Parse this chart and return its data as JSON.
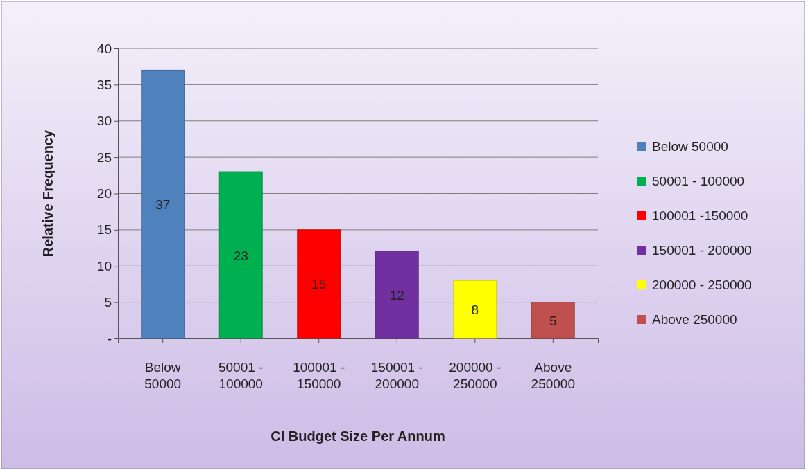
{
  "chart_data": {
    "type": "bar",
    "xlabel": "CI Budget Size Per Annum",
    "ylabel": "Relative Frequency",
    "categories": [
      "Below 50000",
      "50001 - 100000",
      "100001 - 150000",
      "150001 - 200000",
      "200000 - 250000",
      "Above 250000"
    ],
    "series": [
      {
        "name": "Below 50000",
        "color": "#4f81bd",
        "values": [
          37,
          null,
          null,
          null,
          null,
          null
        ]
      },
      {
        "name": "50001 - 100000",
        "color": "#00b050",
        "values": [
          null,
          23,
          null,
          null,
          null,
          null
        ]
      },
      {
        "name": "100001 -150000",
        "color": "#ff0000",
        "values": [
          null,
          null,
          15,
          null,
          null,
          null
        ]
      },
      {
        "name": "150001 - 200000",
        "color": "#7030a0",
        "values": [
          null,
          null,
          null,
          12,
          null,
          null
        ]
      },
      {
        "name": "200000 - 250000",
        "color": "#ffff00",
        "values": [
          null,
          null,
          null,
          null,
          8,
          null
        ]
      },
      {
        "name": "Above 250000",
        "color": "#c0504d",
        "values": [
          null,
          null,
          null,
          null,
          null,
          5
        ]
      }
    ],
    "ylim": [
      0,
      40
    ],
    "yticks": [
      {
        "value": 0,
        "label": "-"
      },
      5,
      10,
      15,
      20,
      25,
      30,
      35,
      40
    ],
    "grid": "y",
    "legend": "right",
    "data_labels": true
  }
}
